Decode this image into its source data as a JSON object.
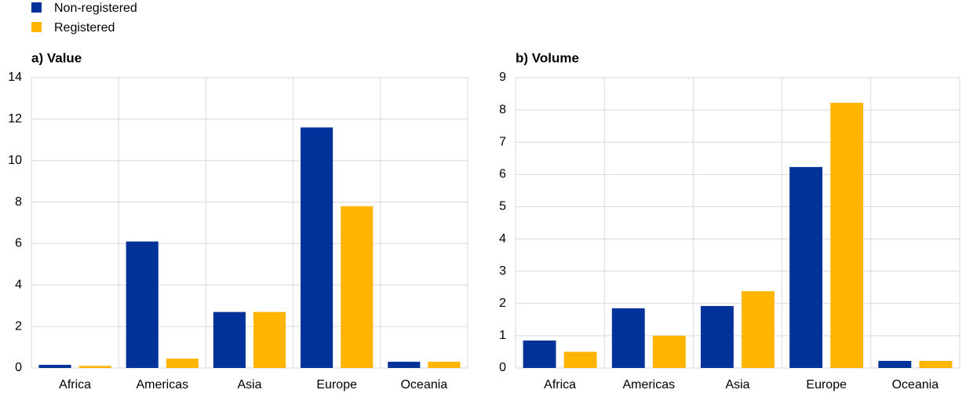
{
  "chart_data": [
    {
      "type": "bar",
      "title": "a) Value",
      "categories": [
        "Africa",
        "Americas",
        "Asia",
        "Europe",
        "Oceania"
      ],
      "series": [
        {
          "name": "Non-registered",
          "color": "#003299",
          "values": [
            0.15,
            6.1,
            2.7,
            11.6,
            0.3
          ]
        },
        {
          "name": "Registered",
          "color": "#ffb400",
          "values": [
            0.1,
            0.45,
            2.7,
            7.8,
            0.3
          ]
        }
      ],
      "ylim": [
        0,
        14
      ],
      "yticks": [
        0,
        2,
        4,
        6,
        8,
        10,
        12,
        14
      ],
      "grid": true
    },
    {
      "type": "bar",
      "title": "b) Volume",
      "categories": [
        "Africa",
        "Americas",
        "Asia",
        "Europe",
        "Oceania"
      ],
      "series": [
        {
          "name": "Non-registered",
          "color": "#003299",
          "values": [
            0.85,
            1.85,
            1.92,
            6.23,
            0.22
          ]
        },
        {
          "name": "Registered",
          "color": "#ffb400",
          "values": [
            0.5,
            1.0,
            2.38,
            8.22,
            0.22
          ]
        }
      ],
      "ylim": [
        0,
        9
      ],
      "yticks": [
        0,
        1,
        2,
        3,
        4,
        5,
        6,
        7,
        8,
        9
      ],
      "grid": true
    }
  ]
}
